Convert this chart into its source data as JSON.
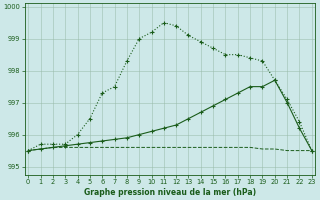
{
  "xlabel": "Graphe pression niveau de la mer (hPa)",
  "background_color": "#cde8e8",
  "line_color": "#1a5c1a",
  "ylim": [
    994.75,
    1000.1
  ],
  "xlim": [
    -0.3,
    23.3
  ],
  "yticks": [
    995,
    996,
    997,
    998,
    999,
    1000
  ],
  "xticks": [
    0,
    1,
    2,
    3,
    4,
    5,
    6,
    7,
    8,
    9,
    10,
    11,
    12,
    13,
    14,
    15,
    16,
    17,
    18,
    19,
    20,
    21,
    22,
    23
  ],
  "line1_x": [
    0,
    1,
    2,
    3,
    4,
    5,
    6,
    7,
    8,
    9,
    10,
    11,
    12,
    13,
    14,
    15,
    16,
    17,
    18,
    19,
    20,
    21,
    22,
    23
  ],
  "line1_y": [
    995.5,
    995.55,
    995.6,
    995.65,
    995.7,
    995.75,
    995.8,
    995.85,
    995.9,
    996.0,
    996.1,
    996.2,
    996.3,
    996.5,
    996.7,
    996.9,
    997.1,
    997.3,
    997.5,
    997.5,
    997.7,
    997.0,
    996.2,
    995.5
  ],
  "line2_x": [
    0,
    1,
    2,
    3,
    4,
    5,
    6,
    7,
    8,
    9,
    10,
    11,
    12,
    13,
    14,
    15,
    16,
    17,
    18,
    19,
    20,
    21,
    22,
    23
  ],
  "line2_y": [
    995.5,
    995.7,
    995.7,
    995.7,
    996.0,
    996.5,
    997.3,
    997.5,
    998.3,
    999.0,
    999.2,
    999.5,
    999.4,
    999.1,
    998.9,
    998.7,
    998.5,
    998.5,
    998.4,
    998.3,
    997.7,
    997.1,
    996.4,
    995.5
  ],
  "line3_x": [
    0,
    1,
    2,
    3,
    4,
    5,
    6,
    7,
    8,
    9,
    10,
    11,
    12,
    13,
    14,
    15,
    16,
    17,
    18,
    19,
    20,
    21,
    22,
    23
  ],
  "line3_y": [
    995.5,
    995.55,
    995.6,
    995.6,
    995.6,
    995.6,
    995.6,
    995.6,
    995.6,
    995.6,
    995.6,
    995.6,
    995.6,
    995.6,
    995.6,
    995.6,
    995.6,
    995.6,
    995.6,
    995.55,
    995.55,
    995.5,
    995.5,
    995.5
  ]
}
